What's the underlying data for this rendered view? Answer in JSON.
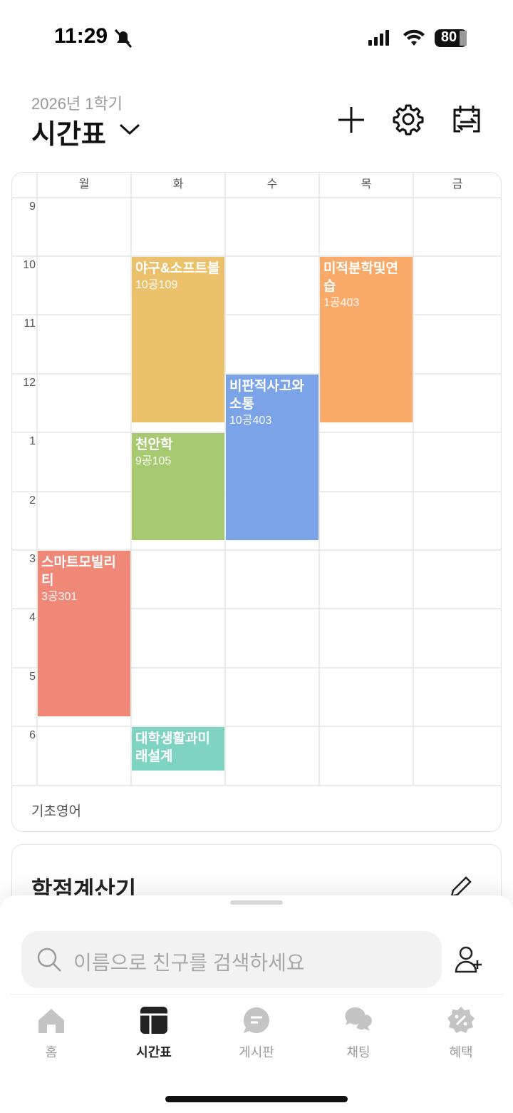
{
  "status_bar": {
    "time": "11:29",
    "battery": "80"
  },
  "header": {
    "semester": "2026년 1학기",
    "title": "시간표"
  },
  "timetable": {
    "days": [
      "월",
      "화",
      "수",
      "목",
      "금"
    ],
    "hours": [
      "9",
      "10",
      "11",
      "12",
      "1",
      "2",
      "3",
      "4",
      "5",
      "6"
    ],
    "courses": [
      {
        "name": "야구&소프트볼",
        "room": "10공109"
      },
      {
        "name": "미적분학및연습",
        "room": "1공403"
      },
      {
        "name": "비판적사고와소통",
        "room": "10공403"
      },
      {
        "name": "천안학",
        "room": "9공105"
      },
      {
        "name": "스마트모빌리티",
        "room": "3공301"
      },
      {
        "name": "대학생활과미래설계"
      }
    ],
    "unscheduled": [
      "기초영어"
    ]
  },
  "credit_card": {
    "title": "학점계산기"
  },
  "search": {
    "placeholder": "이름으로 친구를 검색하세요"
  },
  "tabs": [
    "홈",
    "시간표",
    "게시판",
    "채팅",
    "혜택"
  ]
}
